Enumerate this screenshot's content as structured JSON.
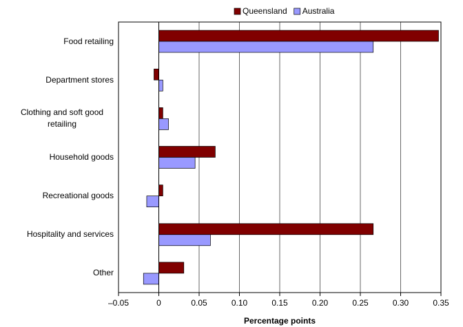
{
  "chart_data": {
    "type": "hbar",
    "x_label": "Percentage points",
    "categories": [
      "Food retailing",
      "Department stores",
      "Clothing and soft good retailing",
      "Household goods",
      "Recreational goods",
      "Hospitality and services",
      "Other"
    ],
    "series": [
      {
        "name": "Queensland",
        "color": "#800000",
        "values": [
          0.347,
          -0.006,
          0.005,
          0.07,
          0.005,
          0.266,
          0.031
        ]
      },
      {
        "name": "Australia",
        "color": "#9999ff",
        "values": [
          0.266,
          0.005,
          0.012,
          0.045,
          -0.015,
          0.064,
          -0.019
        ]
      }
    ],
    "xlim": [
      -0.05,
      0.35
    ],
    "xticks": [
      {
        "value": -0.05,
        "label": "–0.05"
      },
      0,
      0.05,
      {
        "value": 0.1,
        "label": "0.10"
      },
      0.15,
      {
        "value": 0.2,
        "label": "0.20"
      },
      0.25,
      {
        "value": 0.3,
        "label": "0.30"
      },
      0.35
    ],
    "grid": true,
    "legend": "top"
  }
}
